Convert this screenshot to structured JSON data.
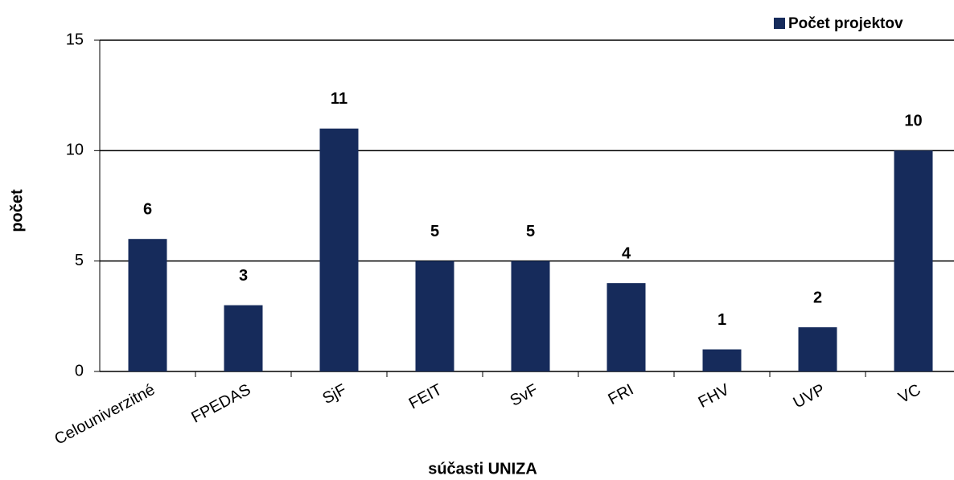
{
  "chart_data": {
    "type": "bar",
    "categories": [
      "Celouniverzitné",
      "FPEDAS",
      "SjF",
      "FEIT",
      "SvF",
      "FRI",
      "FHV",
      "UVP",
      "VC"
    ],
    "series": [
      {
        "name": "Počet projektov",
        "color": "#162b5b",
        "values": [
          6,
          3,
          11,
          5,
          5,
          4,
          1,
          2,
          10
        ]
      }
    ],
    "xlabel": "súčasti UNIZA",
    "ylabel": "počet",
    "ylim": [
      0,
      15
    ],
    "yticks": [
      0,
      5,
      10,
      15
    ],
    "grid": true,
    "legend": "top-right"
  }
}
